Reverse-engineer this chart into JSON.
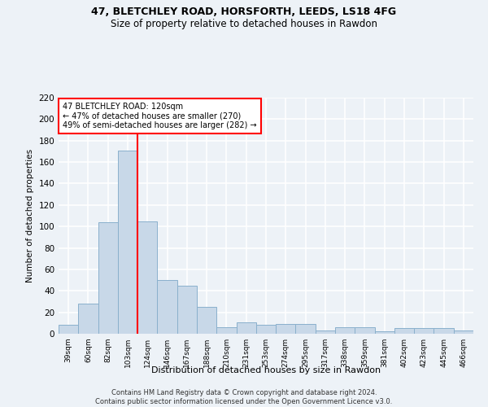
{
  "title1": "47, BLETCHLEY ROAD, HORSFORTH, LEEDS, LS18 4FG",
  "title2": "Size of property relative to detached houses in Rawdon",
  "xlabel": "Distribution of detached houses by size in Rawdon",
  "ylabel": "Number of detached properties",
  "bar_color": "#c8d8e8",
  "bar_edge_color": "#8ab0cc",
  "categories": [
    "39sqm",
    "60sqm",
    "82sqm",
    "103sqm",
    "124sqm",
    "146sqm",
    "167sqm",
    "188sqm",
    "210sqm",
    "231sqm",
    "253sqm",
    "274sqm",
    "295sqm",
    "317sqm",
    "338sqm",
    "359sqm",
    "381sqm",
    "402sqm",
    "423sqm",
    "445sqm",
    "466sqm"
  ],
  "values": [
    8,
    28,
    104,
    171,
    105,
    50,
    45,
    25,
    6,
    11,
    8,
    9,
    9,
    3,
    6,
    6,
    2,
    5,
    5,
    5,
    3
  ],
  "property_label": "47 BLETCHLEY ROAD: 120sqm",
  "annotation_line1": "← 47% of detached houses are smaller (270)",
  "annotation_line2": "49% of semi-detached houses are larger (282) →",
  "vline_x_index": 3.5,
  "ylim": [
    0,
    220
  ],
  "yticks": [
    0,
    20,
    40,
    60,
    80,
    100,
    120,
    140,
    160,
    180,
    200,
    220
  ],
  "footer1": "Contains HM Land Registry data © Crown copyright and database right 2024.",
  "footer2": "Contains public sector information licensed under the Open Government Licence v3.0.",
  "background_color": "#edf2f7",
  "grid_color": "#ffffff",
  "title_fontsize": 9,
  "subtitle_fontsize": 8.5
}
